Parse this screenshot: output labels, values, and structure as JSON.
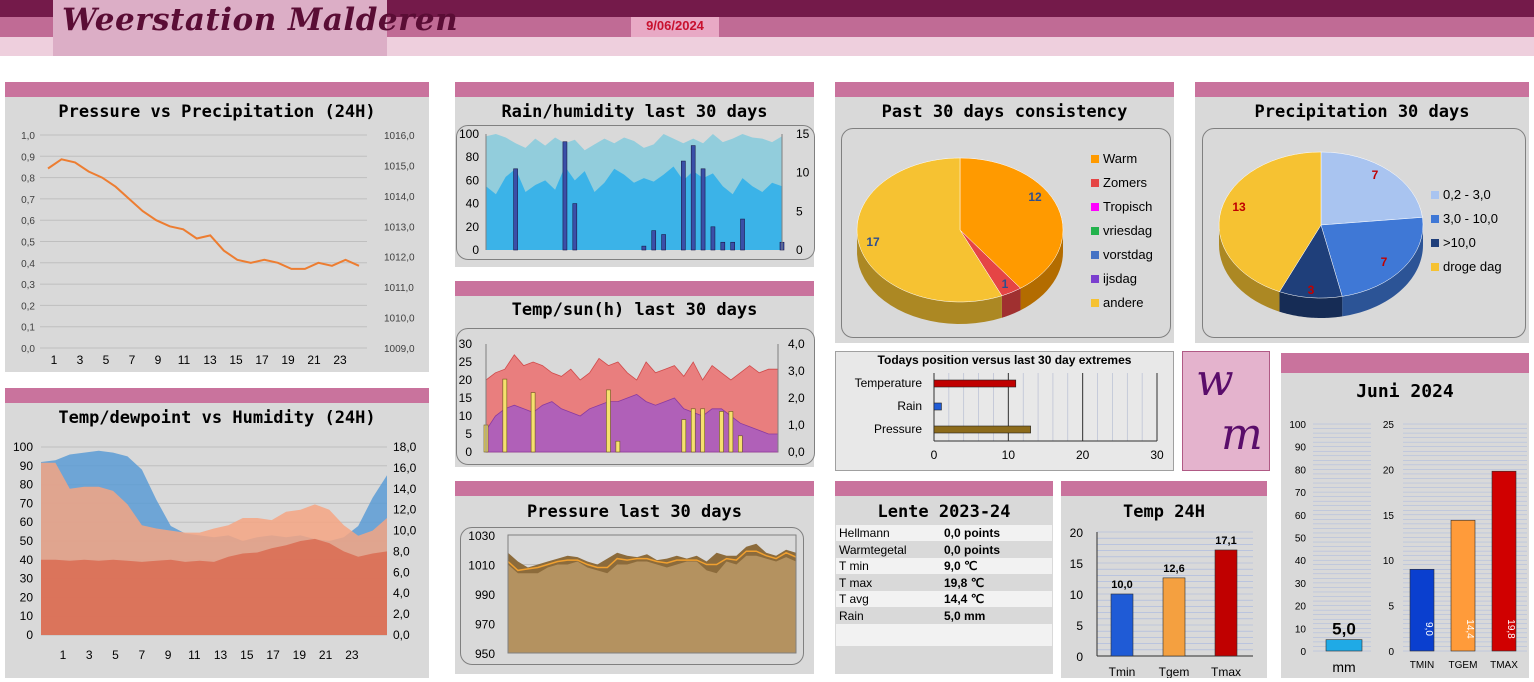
{
  "header": {
    "title": "Weerstation Malderen",
    "date": "9/06/2024"
  },
  "logo": {
    "line1": "w",
    "line2": "m"
  },
  "panels": {
    "p1": "Pressure vs Precipitation (24H)",
    "p2": "Temp/dewpoint vs Humidity (24H)",
    "p3": "Rain/humidity last 30 days",
    "p4": "Temp/sun(h) last 30 days",
    "p5": "Pressure last 30 days",
    "p6": "Past 30 days consistency",
    "p7": "Precipitation 30 days",
    "p8": "Todays position versus last 30 day extremes",
    "p9": "Lente 2023-24",
    "p10": "Temp 24H",
    "p11": "Juni 2024"
  },
  "lente": [
    {
      "label": "Hellmann",
      "value": "0,0 points"
    },
    {
      "label": "Warmtegetal",
      "value": "0,0 points"
    },
    {
      "label": "T min",
      "value": "9,0 ℃"
    },
    {
      "label": "T max",
      "value": "19,8 ℃"
    },
    {
      "label": "T avg",
      "value": "14,4 ℃"
    },
    {
      "label": "Rain",
      "value": "5,0 mm"
    }
  ],
  "colors": {
    "header_dark": "#741a4a",
    "header_mid": "#c06b95",
    "panel_head": "#c9739d",
    "panel_bg": "#d9d9d9"
  },
  "chart_data": [
    {
      "type": "line",
      "title": "Pressure vs Precipitation (24H)",
      "x_ticks": [
        "1",
        "3",
        "5",
        "7",
        "9",
        "11",
        "13",
        "15",
        "17",
        "19",
        "21",
        "23"
      ],
      "y_left_ticks": [
        "1,0",
        "0,9",
        "0,8",
        "0,7",
        "0,6",
        "0,5",
        "0,4",
        "0,3",
        "0,2",
        "0,1",
        "0,0"
      ],
      "y_right_ticks": [
        "1016,0",
        "1015,0",
        "1014,0",
        "1013,0",
        "1012,0",
        "1011,0",
        "1010,0",
        "1009,0"
      ],
      "ylim_right": [
        1009,
        1016
      ],
      "series": [
        {
          "color": "#ed7d31",
          "values": [
            1014.9,
            1015.2,
            1015.1,
            1014.8,
            1014.6,
            1014.3,
            1013.9,
            1013.5,
            1013.2,
            1013.0,
            1012.9,
            1012.6,
            1012.7,
            1012.2,
            1011.9,
            1011.8,
            1011.9,
            1011.8,
            1011.6,
            1011.6,
            1011.8,
            1011.7,
            1011.9,
            1011.7
          ]
        }
      ]
    },
    {
      "type": "area",
      "title": "Temp/dewpoint vs Humidity (24H)",
      "x_ticks": [
        "1",
        "3",
        "5",
        "7",
        "9",
        "11",
        "13",
        "15",
        "17",
        "19",
        "21",
        "23"
      ],
      "y_left_ticks": [
        "100",
        "90",
        "80",
        "70",
        "60",
        "50",
        "40",
        "30",
        "20",
        "10",
        "0"
      ],
      "y_right_ticks": [
        "18,0",
        "16,0",
        "14,0",
        "12,0",
        "10,0",
        "8,0",
        "6,0",
        "4,0",
        "2,0",
        "0,0"
      ],
      "ylim_left": [
        0,
        100
      ],
      "ylim_right": [
        0,
        18
      ],
      "series": [
        {
          "color": "#5b9bd5",
          "axis": "left",
          "values": [
            92,
            93,
            96,
            97,
            98,
            97,
            95,
            88,
            72,
            58,
            54,
            53,
            52,
            53,
            50,
            52,
            53,
            52,
            53,
            51,
            50,
            52,
            58,
            73,
            85
          ]
        },
        {
          "color": "#f4a582",
          "axis": "right",
          "values": [
            16.5,
            16.5,
            14.0,
            14.2,
            14.2,
            13.8,
            12.5,
            10.5,
            10.2,
            10.0,
            9.8,
            9.8,
            10.2,
            10.5,
            11.2,
            11.2,
            11.0,
            11.8,
            12.0,
            12.5,
            12.0,
            10.5,
            9.5,
            10.0,
            11.2
          ]
        },
        {
          "color": "#d96b52",
          "axis": "right",
          "values": [
            7.2,
            7.2,
            7.1,
            7.2,
            7.1,
            7.2,
            7.1,
            7.0,
            7.1,
            7.2,
            7.0,
            7.1,
            7.0,
            7.5,
            7.8,
            7.9,
            8.3,
            8.6,
            9.0,
            9.2,
            8.8,
            8.0,
            7.5,
            7.8,
            8.0
          ]
        }
      ]
    },
    {
      "type": "bar",
      "title": "Rain/humidity last 30 days",
      "y_left_ticks": [
        "100",
        "80",
        "60",
        "40",
        "20",
        "0"
      ],
      "y_right_ticks": [
        "15",
        "10",
        "5",
        "0"
      ],
      "ylim_left": [
        0,
        100
      ],
      "ylim_right": [
        0,
        15
      ],
      "series": [
        {
          "name": "humidity max",
          "color": "#92cddc",
          "values": [
            98,
            100,
            97,
            92,
            88,
            96,
            90,
            97,
            92,
            95,
            86,
            91,
            96,
            92,
            97,
            94,
            88,
            91,
            100,
            96,
            92,
            96,
            92,
            100,
            93,
            96,
            100,
            97,
            96,
            93,
            98
          ]
        },
        {
          "name": "humidity min",
          "color": "#3bb3e8",
          "values": [
            55,
            48,
            63,
            70,
            50,
            56,
            60,
            52,
            72,
            60,
            68,
            50,
            58,
            70,
            65,
            58,
            62,
            59,
            65,
            72,
            60,
            68,
            62,
            66,
            55,
            48,
            62,
            55,
            50,
            58,
            55
          ]
        },
        {
          "name": "rain",
          "color": "#3a4fa8",
          "values": [
            0,
            0,
            0,
            10.5,
            0,
            0,
            0,
            0,
            14,
            6,
            0,
            0,
            0,
            0,
            0,
            0,
            0.5,
            2.5,
            2,
            0,
            11.5,
            13.5,
            10.5,
            3,
            1,
            1,
            4,
            0,
            0,
            0,
            1
          ]
        }
      ]
    },
    {
      "type": "bar",
      "title": "Temp/sun(h) last 30 days",
      "y_left_ticks": [
        "30",
        "25",
        "20",
        "15",
        "10",
        "5",
        "0"
      ],
      "y_right_ticks": [
        "4,0",
        "3,0",
        "2,0",
        "1,0",
        "0,0"
      ],
      "ylim_left": [
        0,
        30
      ],
      "ylim_right": [
        0,
        4
      ],
      "series": [
        {
          "name": "temp max",
          "color": "#e97e7e",
          "values": [
            20,
            22,
            23,
            27,
            24,
            25,
            24,
            22,
            21,
            23,
            20,
            22,
            26,
            24,
            25,
            22,
            20,
            25,
            22,
            23,
            24,
            21,
            25,
            20,
            24,
            22,
            20,
            22,
            24,
            22,
            23,
            23
          ]
        },
        {
          "name": "temp min",
          "color": "#b060b8",
          "values": [
            6,
            10,
            12,
            13,
            12,
            11,
            13,
            14,
            12,
            11,
            10,
            12,
            13,
            14,
            14,
            15,
            16,
            14,
            13,
            14,
            15,
            12,
            11,
            10,
            12,
            12,
            10,
            8,
            7,
            6,
            5,
            5
          ]
        },
        {
          "name": "sun",
          "color": "#f6e06e",
          "values": [
            1.0,
            0,
            2.7,
            0,
            0,
            2.2,
            0,
            0,
            0,
            0,
            0,
            0,
            0,
            2.3,
            0.4,
            0,
            0,
            0,
            0,
            0,
            0,
            1.2,
            1.6,
            1.6,
            0,
            1.5,
            1.5,
            0.6,
            0,
            0,
            0,
            0
          ]
        }
      ]
    },
    {
      "type": "area",
      "title": "Pressure last 30 days",
      "y_ticks": [
        "1030",
        "1010",
        "990",
        "970",
        "950"
      ],
      "ylim": [
        950,
        1030
      ],
      "series": [
        {
          "name": "max",
          "color": "#8c6b3b",
          "values": [
            1018,
            1012,
            1008,
            1010,
            1012,
            1014,
            1016,
            1015,
            1012,
            1010,
            1014,
            1018,
            1016,
            1015,
            1017,
            1013,
            1014,
            1016,
            1014,
            1016,
            1012,
            1018,
            1016,
            1016,
            1022,
            1024,
            1018,
            1016,
            1020,
            1018
          ]
        },
        {
          "name": "min",
          "color": "#b49260",
          "values": [
            1010,
            1004,
            1004,
            1004,
            1008,
            1010,
            1010,
            1012,
            1008,
            1006,
            1004,
            1010,
            1010,
            1012,
            1012,
            1010,
            1008,
            1010,
            1012,
            1012,
            1006,
            1004,
            1012,
            1010,
            1016,
            1016,
            1014,
            1012,
            1015,
            1012
          ]
        },
        {
          "name": "avg",
          "color": "#f0a030",
          "values": [
            1012,
            1006,
            1007,
            1008,
            1010,
            1012,
            1013,
            1013,
            1010,
            1008,
            1008,
            1014,
            1013,
            1014,
            1014,
            1012,
            1011,
            1013,
            1013,
            1013,
            1010,
            1010,
            1014,
            1013,
            1019,
            1019,
            1016,
            1014,
            1018,
            1015
          ]
        }
      ]
    },
    {
      "type": "pie",
      "title": "Past 30 days consistency",
      "legend_position": "right",
      "slices": [
        {
          "label": "Warm",
          "value": 12,
          "color": "#ff9a00"
        },
        {
          "label": "Zomers",
          "value": 1,
          "color": "#e54545"
        },
        {
          "label": "Tropisch",
          "value": 0,
          "color": "#ff00ff"
        },
        {
          "label": "vriesdag",
          "value": 0,
          "color": "#22b24c"
        },
        {
          "label": "vorstdag",
          "value": 0,
          "color": "#4472c4"
        },
        {
          "label": "ijsdag",
          "value": 0,
          "color": "#7b3fcf"
        },
        {
          "label": "andere",
          "value": 17,
          "color": "#f6c232"
        }
      ],
      "data_labels": [
        "12",
        "1",
        "17"
      ]
    },
    {
      "type": "pie",
      "title": "Precipitation 30 days",
      "legend_position": "right",
      "slices": [
        {
          "label": "0,2 - 3,0",
          "value": 7,
          "color": "#a9c4f0"
        },
        {
          "label": "3,0 - 10,0",
          "value": 7,
          "color": "#3f78d6"
        },
        {
          "label": ">10,0",
          "value": 3,
          "color": "#1f3f7a"
        },
        {
          "label": "droge dag",
          "value": 13,
          "color": "#f6c232"
        }
      ],
      "data_labels": [
        "7",
        "7",
        "3",
        "13"
      ]
    },
    {
      "type": "bar",
      "title": "Todays position versus last 30 day extremes",
      "categories": [
        "Temperature",
        "Rain",
        "Pressure"
      ],
      "values": [
        11,
        1,
        13
      ],
      "colors": [
        "#c00000",
        "#1f5bd6",
        "#8c6b1b"
      ],
      "x_ticks": [
        "0",
        "10",
        "20",
        "30"
      ],
      "xlim": [
        0,
        30
      ]
    },
    {
      "type": "bar",
      "title": "Temp 24H",
      "categories": [
        "Tmin",
        "Tgem",
        "Tmax"
      ],
      "values": [
        10.0,
        12.6,
        17.1
      ],
      "value_labels": [
        "10,0",
        "12,6",
        "17,1"
      ],
      "colors": [
        "#1f5bd6",
        "#f4a040",
        "#c00000"
      ],
      "y_ticks": [
        "20",
        "15",
        "10",
        "5",
        "0"
      ],
      "ylim": [
        0,
        20
      ]
    },
    {
      "type": "bar",
      "title": "Juni 2024",
      "rain": {
        "value": 5.0,
        "label": "5,0",
        "unit": "mm",
        "color": "#1faae6",
        "ylim": [
          0,
          100
        ],
        "y_ticks": [
          "100",
          "90",
          "80",
          "70",
          "60",
          "50",
          "40",
          "30",
          "20",
          "10",
          "0"
        ]
      },
      "temps": {
        "categories": [
          "TMIN",
          "TGEM",
          "TMAX"
        ],
        "values": [
          9.0,
          14.4,
          19.8
        ],
        "value_labels": [
          "9,0",
          "14,4",
          "19,8"
        ],
        "colors": [
          "#0a3fcf",
          "#ff9b3a",
          "#d00000"
        ],
        "ylim": [
          0,
          25
        ],
        "y_ticks": [
          "25",
          "20",
          "15",
          "10",
          "5",
          "0"
        ]
      }
    }
  ]
}
